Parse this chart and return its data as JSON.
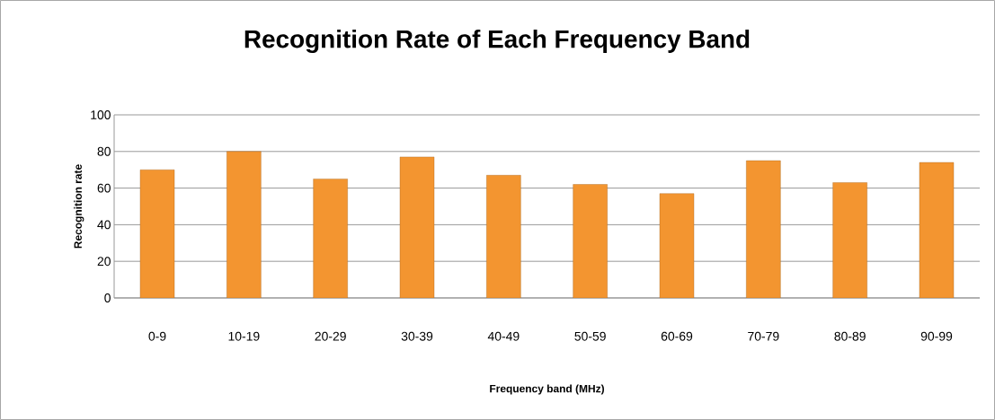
{
  "chart_data": {
    "type": "bar",
    "title": "Recognition Rate of Each Frequency Band",
    "xlabel": "Frequency band (MHz)",
    "ylabel": "Recognition rate",
    "categories": [
      "0-9",
      "10-19",
      "20-29",
      "30-39",
      "40-49",
      "50-59",
      "60-69",
      "70-79",
      "80-89",
      "90-99"
    ],
    "values": [
      70,
      80,
      65,
      77,
      67,
      62,
      57,
      75,
      63,
      74
    ],
    "color": "#f39530",
    "ylim": [
      0,
      100
    ],
    "yticks": [
      0,
      20,
      40,
      60,
      80,
      100
    ],
    "grid": "y"
  }
}
